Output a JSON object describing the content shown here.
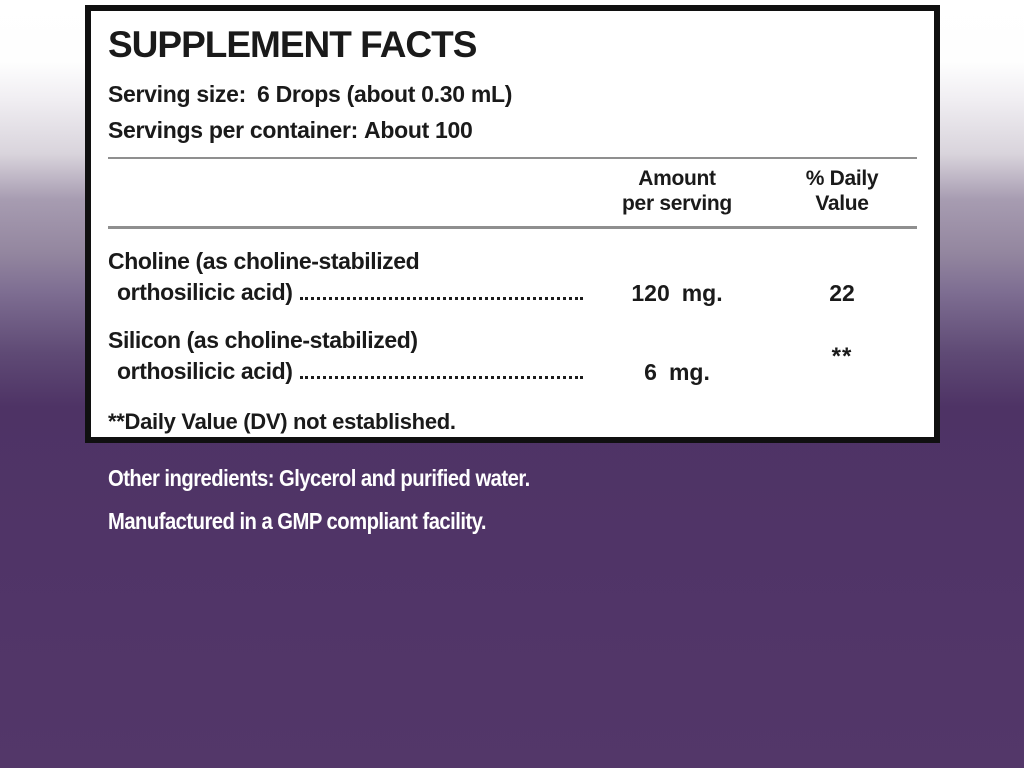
{
  "colors": {
    "background_top": "#ffffff",
    "background_bottom": "#533769",
    "panel_background": "#ffffff",
    "panel_border": "#101010",
    "text": "#1a1a1a",
    "rule_gray": "#8f8f8f",
    "below_text": "#ffffff"
  },
  "panel": {
    "title": "SUPPLEMENT FACTS",
    "serving_size_label": "Serving size:",
    "serving_size_value": "6 Drops (about 0.30 mL)",
    "servings_per_container_label": "Servings per container:",
    "servings_per_container_value": "About 100",
    "columns": {
      "amount_line1": "Amount",
      "amount_line2": "per serving",
      "dv_line1": "% Daily",
      "dv_line2": "Value"
    },
    "rows": [
      {
        "name_line1": "Choline (as choline-stabilized",
        "name_line2": "orthosilicic acid)",
        "amount_value": "120",
        "amount_unit": "mg.",
        "daily_value": "22"
      },
      {
        "name_line1": "Silicon (as choline-stabilized)",
        "name_line2": "orthosilicic acid)",
        "amount_value": "6",
        "amount_unit": "mg.",
        "daily_value": "**"
      }
    ],
    "footnote": "**Daily Value (DV) not established."
  },
  "below": {
    "other_ingredients": "Other ingredients: Glycerol and purified water.",
    "manufactured": "Manufactured in a GMP compliant facility."
  }
}
